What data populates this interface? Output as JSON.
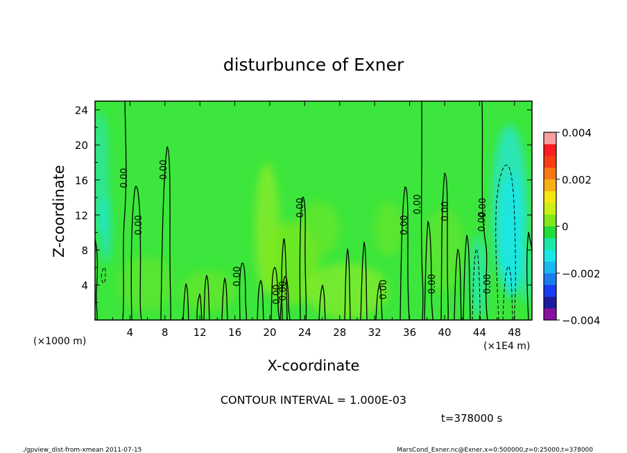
{
  "chart_data": {
    "type": "heatmap",
    "title": "disturbunce of Exner",
    "xlabel": "X-coordinate",
    "ylabel": "Z-coordinate",
    "x_unit_left": "(×1000 m)",
    "x_unit_right": "(×1E4 m)",
    "xlim": [
      0,
      500000
    ],
    "ylim": [
      0,
      25000
    ],
    "x_ticks": [
      4,
      8,
      12,
      16,
      20,
      24,
      28,
      32,
      36,
      40,
      44,
      48
    ],
    "y_ticks": [
      4,
      8,
      12,
      16,
      20,
      24
    ],
    "colorbar": {
      "range": [
        -0.004,
        0.004
      ],
      "tick_labels": [
        "0.004",
        "0.002",
        "0",
        "−0.002",
        "−0.004"
      ],
      "colors": [
        "#8a0fa0",
        "#1c1ca0",
        "#1a3cf0",
        "#1a7cf0",
        "#1ab8f0",
        "#1ae6e6",
        "#1ae6aa",
        "#22dc3a",
        "#7ee81c",
        "#c8f014",
        "#f4e614",
        "#f8b014",
        "#f87814",
        "#f83c14",
        "#f81e1e",
        "#f8a0a0"
      ]
    },
    "contour_labels": [
      "0.00",
      "0.00",
      "0.00",
      "0.00",
      "0.00",
      "0.00",
      "0.00",
      "0.00",
      "0.00",
      "0.00",
      "0.00",
      "0.00",
      "0.00",
      "0.00",
      "0.00"
    ],
    "contour_interval_text": "CONTOUR INTERVAL = 1.000E-03",
    "time_text": "t=378000 s"
  },
  "footer": {
    "left": "./gpview_dist-from-xmean  2011-07-15",
    "right": "MarsCond_Exner.nc@Exner,x=0:500000,z=0:25000,t=378000"
  }
}
